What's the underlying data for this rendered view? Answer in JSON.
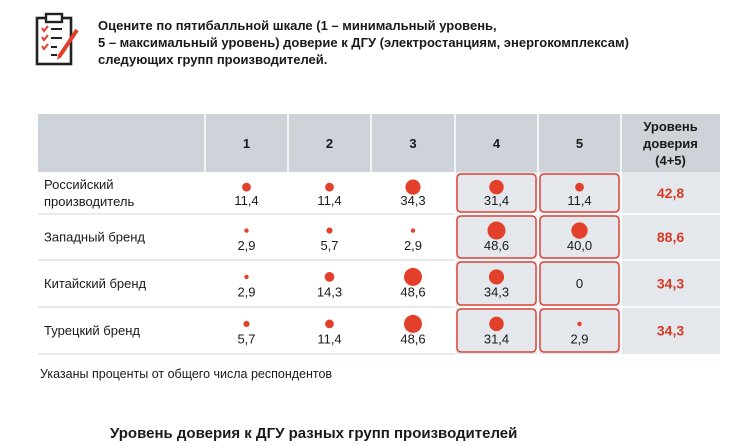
{
  "question": {
    "lines": [
      "Оцените по пятибалльной шкале (1 – минимальный уровень,",
      "5 – максимальный уровень) доверие к ДГУ (электростанциям, энергокомплексам)",
      "следующих групп производителей."
    ]
  },
  "colors": {
    "header_bg": "#cdd3d9",
    "highlight_bg": "#e4e8ec",
    "accent_red": "#e2402a",
    "value_red": "#d63a24",
    "border_red": "#d9463a"
  },
  "chart_data": {
    "type": "table",
    "columns": [
      "1",
      "2",
      "3",
      "4",
      "5"
    ],
    "trust_header": [
      "Уровень",
      "доверия",
      "(4+5)"
    ],
    "highlighted_columns": [
      "4",
      "5"
    ],
    "rows": [
      {
        "label": [
          "Российский",
          "производитель"
        ],
        "values": [
          "11,4",
          "11,4",
          "34,3",
          "31,4",
          "11,4"
        ],
        "trust": "42,8"
      },
      {
        "label": [
          "Западный бренд"
        ],
        "values": [
          "2,9",
          "5,7",
          "2,9",
          "48,6",
          "40,0"
        ],
        "trust": "88,6"
      },
      {
        "label": [
          "Китайский бренд"
        ],
        "values": [
          "2,9",
          "14,3",
          "48,6",
          "34,3",
          "0"
        ],
        "trust": "34,3"
      },
      {
        "label": [
          "Турецкий бренд"
        ],
        "values": [
          "5,7",
          "11,4",
          "48,6",
          "31,4",
          "2,9"
        ],
        "trust": "34,3"
      }
    ]
  },
  "note": "Указаны проценты от общего числа респондентов",
  "footer_title": "Уровень доверия к ДГУ разных групп производителей"
}
